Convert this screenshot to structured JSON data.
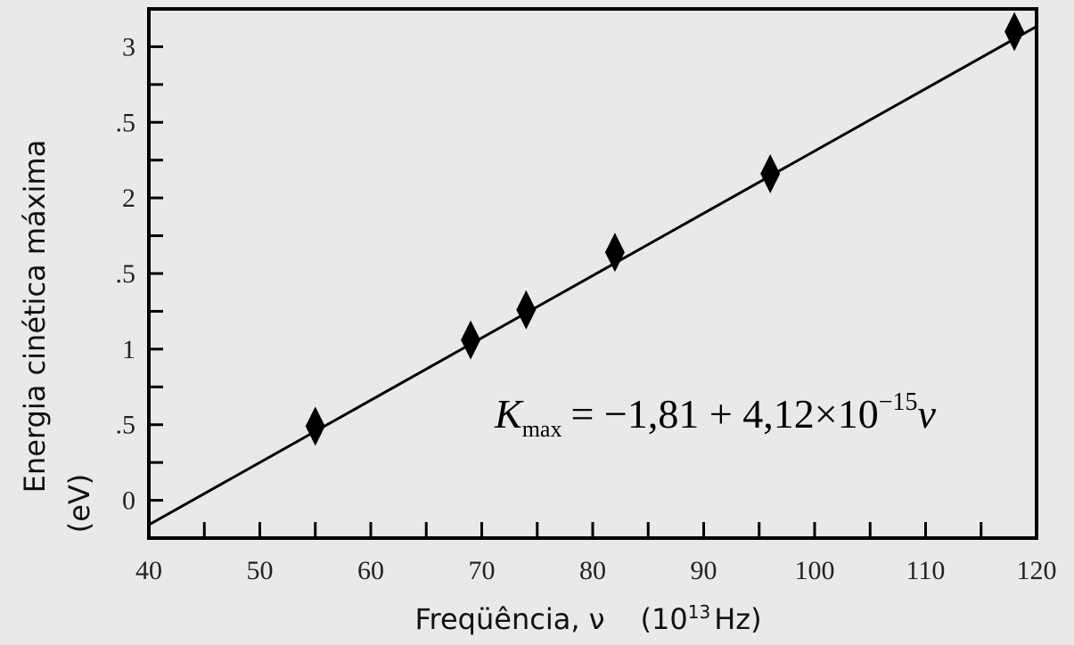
{
  "chart_data": {
    "type": "scatter",
    "xlabel": {
      "text": "Freqüência, ν",
      "unit_open": "(10",
      "unit_exp": "13",
      "unit_close": "Hz)"
    },
    "ylabel": [
      "Energia cinética máxima",
      "(eV)"
    ],
    "annotation": {
      "k": "K",
      "sub": "max",
      "body": "= −1,81 + 4,12×10",
      "exp": "−15",
      "var": "ν"
    },
    "series": [
      {
        "color": "#000000",
        "marker": "diamond",
        "x": [
          55,
          69,
          74,
          82,
          96,
          118
        ],
        "values": [
          0.49,
          1.06,
          1.26,
          1.64,
          2.16,
          3.1
        ]
      },
      {
        "color": "#000000",
        "marker": "line",
        "x": [
          40,
          120
        ],
        "values": [
          -0.162,
          3.134
        ]
      }
    ],
    "xlim": [
      40,
      120
    ],
    "xticks": [
      40,
      50,
      60,
      70,
      80,
      90,
      100,
      110,
      120
    ],
    "xminorticks": [
      45,
      55,
      65,
      75,
      85,
      95,
      105,
      115
    ],
    "ylim": [
      -0.25,
      3.25
    ],
    "yticks": [
      0,
      {
        "value": 0.5,
        "label": ".5"
      },
      1,
      {
        "value": 1.5,
        "label": ".5"
      },
      2,
      {
        "value": 2.5,
        "label": ".5"
      },
      3
    ],
    "yminorticks": [
      -0.25,
      0.25,
      0.75,
      1.25,
      1.75,
      2.25,
      2.75
    ],
    "grid": false
  }
}
